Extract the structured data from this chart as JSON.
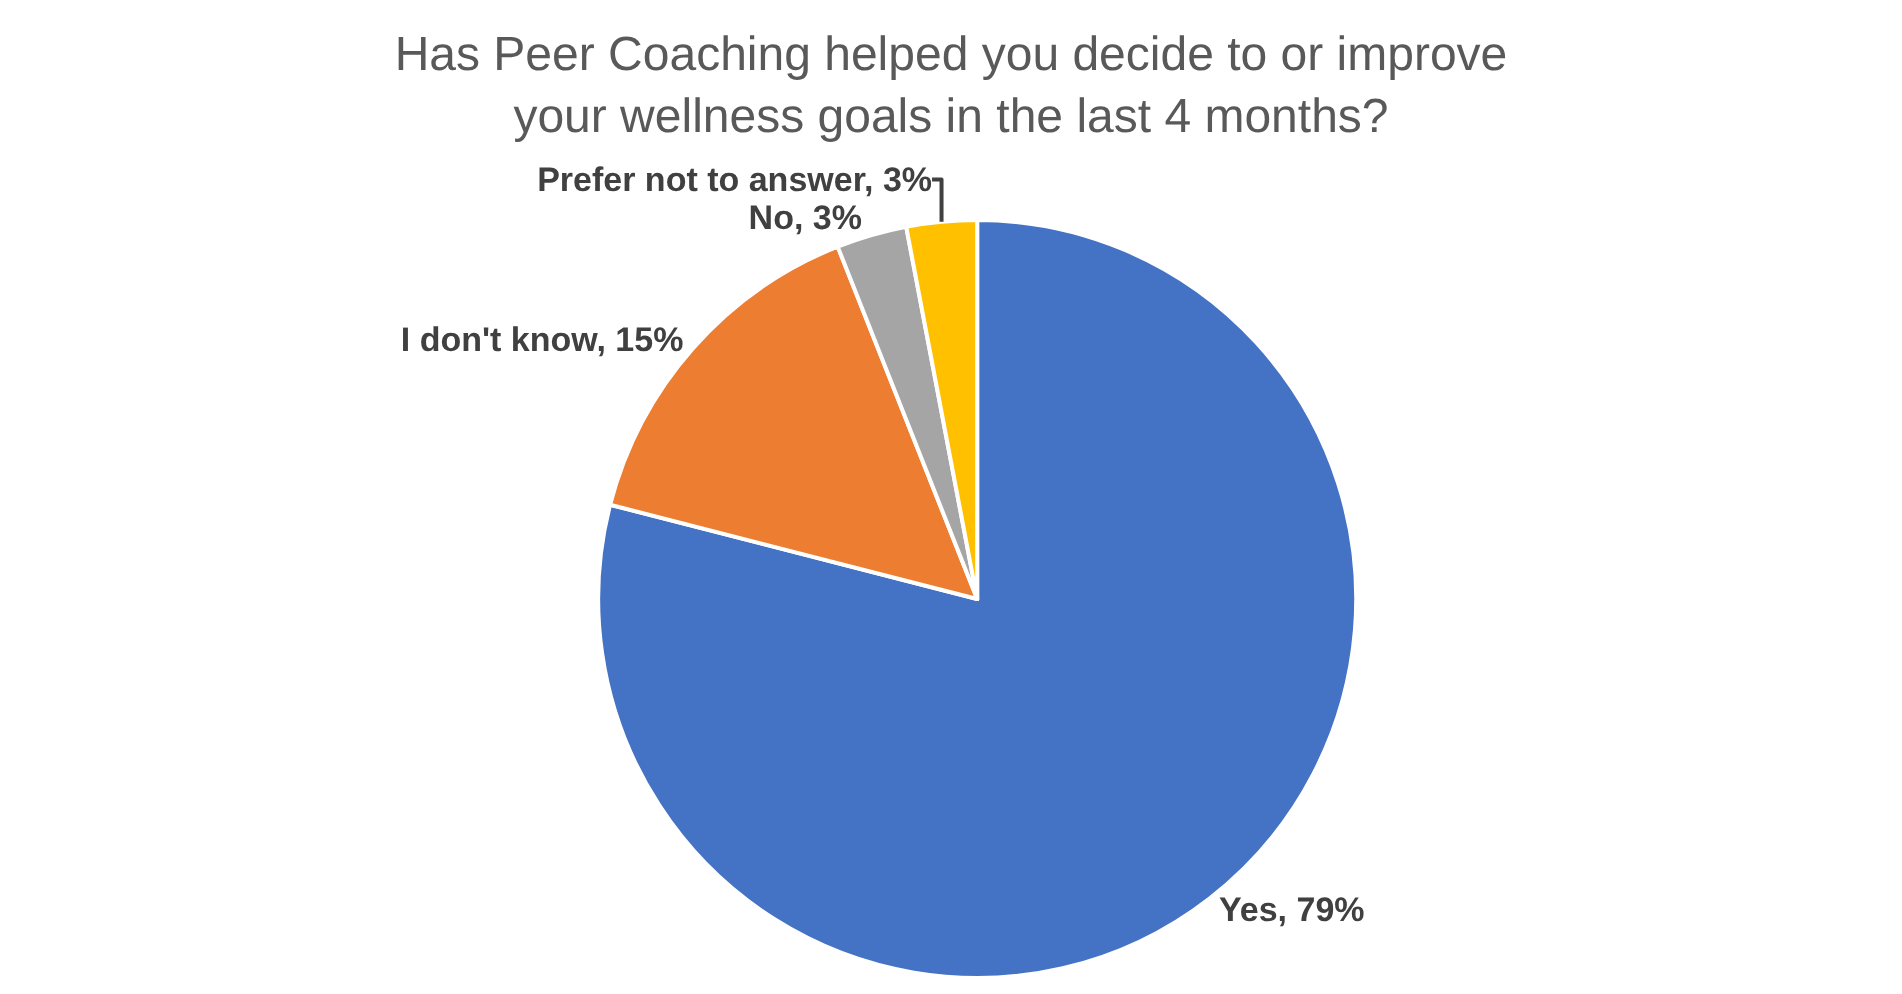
{
  "chart_data": {
    "type": "pie",
    "title": "Has Peer Coaching helped you decide to or improve\nyour wellness goals in the last 4 months?",
    "categories": [
      "Yes",
      "I don't know",
      "No",
      "Prefer not to answer"
    ],
    "values": [
      79,
      15,
      3,
      3
    ],
    "colors": [
      "#4472c4",
      "#ed7d31",
      "#a5a5a5",
      "#ffc000"
    ],
    "value_labels": [
      "79%",
      "15%",
      "3%",
      "3%"
    ],
    "legend": false
  }
}
